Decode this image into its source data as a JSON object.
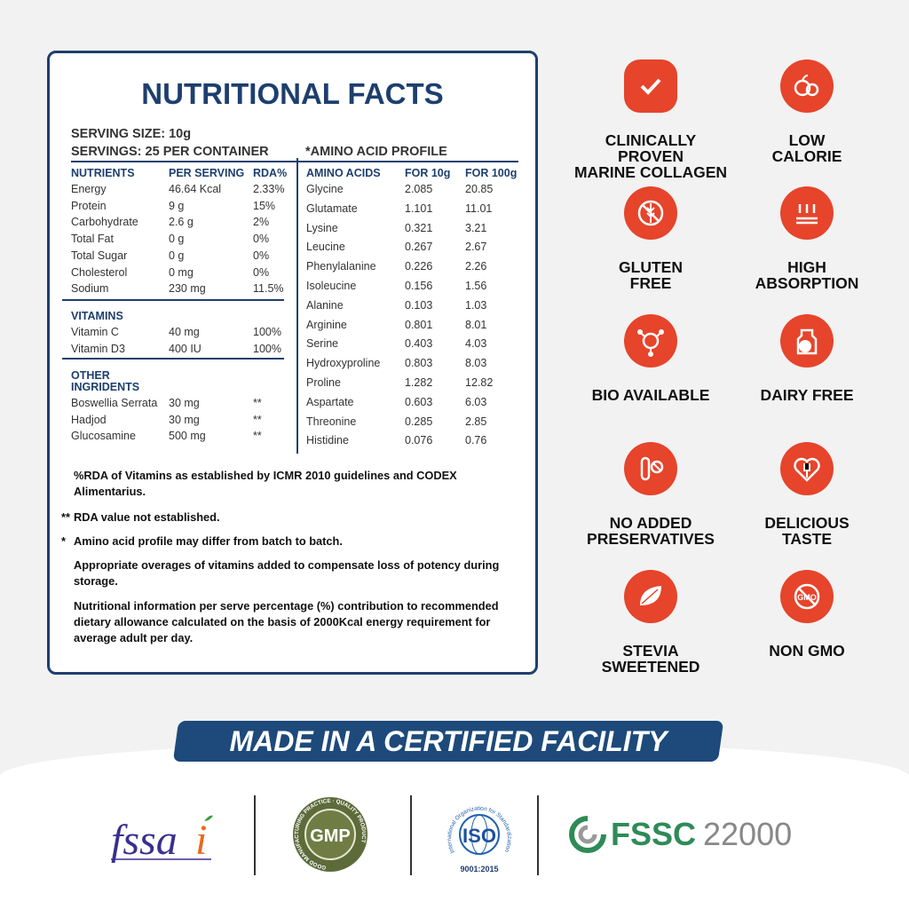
{
  "title": "NUTRITIONAL FACTS",
  "serving_size": "SERVING SIZE: 10g",
  "servings": "SERVINGS: 25 PER CONTAINER",
  "amino_title": "*AMINO ACID PROFILE",
  "nutrients": {
    "headers": [
      "NUTRIENTS",
      "PER SERVING",
      "RDA%"
    ],
    "rows": [
      [
        "Energy",
        "46.64 Kcal",
        "2.33%"
      ],
      [
        "Protein",
        "9 g",
        "15%"
      ],
      [
        "Carbohydrate",
        "2.6 g",
        "2%"
      ],
      [
        "Total Fat",
        "0 g",
        "0%"
      ],
      [
        "Total Sugar",
        "0 g",
        "0%"
      ],
      [
        "Cholesterol",
        "0 mg",
        "0%"
      ],
      [
        "Sodium",
        "230 mg",
        "11.5%"
      ]
    ]
  },
  "vitamins": {
    "header": "VITAMINS",
    "rows": [
      [
        "Vitamin C",
        "40 mg",
        "100%"
      ],
      [
        "Vitamin D3",
        "400 IU",
        "100%"
      ]
    ]
  },
  "other": {
    "header1": "OTHER",
    "header2": "INGRIDENTS",
    "rows": [
      [
        "Boswellia Serrata",
        "30 mg",
        "**"
      ],
      [
        "Hadjod",
        "30 mg",
        "**"
      ],
      [
        "Glucosamine",
        "500 mg",
        "**"
      ]
    ]
  },
  "amino": {
    "headers": [
      "AMINO ACIDS",
      "FOR 10g",
      "FOR 100g"
    ],
    "rows": [
      [
        "Glycine",
        "2.085",
        "20.85"
      ],
      [
        "Glutamate",
        "1.101",
        "11.01"
      ],
      [
        "Lysine",
        "0.321",
        "3.21"
      ],
      [
        "Leucine",
        "0.267",
        "2.67"
      ],
      [
        "Phenylalanine",
        "0.226",
        "2.26"
      ],
      [
        "Isoleucine",
        "0.156",
        "1.56"
      ],
      [
        "Alanine",
        "0.103",
        "1.03"
      ],
      [
        "Arginine",
        "0.801",
        "8.01"
      ],
      [
        "Serine",
        "0.403",
        "4.03"
      ],
      [
        "Hydroxyproline",
        "0.803",
        "8.03"
      ],
      [
        "Proline",
        "1.282",
        "12.82"
      ],
      [
        "Aspartate",
        "0.603",
        "6.03"
      ],
      [
        "Threonine",
        "0.285",
        "2.85"
      ],
      [
        "Histidine",
        "0.076",
        "0.76"
      ]
    ]
  },
  "notes": [
    {
      "star": "",
      "text": "%RDA of Vitamins as established by ICMR 2010 guidelines and CODEX Alimentarius."
    },
    {
      "star": "**",
      "text": "RDA value not established."
    },
    {
      "star": "*",
      "text": "Amino acid profile may differ from batch to batch."
    },
    {
      "star": "",
      "text": "Appropriate overages of vitamins added to compensate loss of potency during storage."
    },
    {
      "star": "",
      "text": "Nutritional information per serve percentage (%) contribution to recommended dietary allowance calculated on the basis of 2000Kcal energy requirement for average adult per day."
    }
  ],
  "features": [
    {
      "icon": "check-badge",
      "l1": "CLINICALLY PROVEN",
      "l2": "MARINE COLLAGEN"
    },
    {
      "icon": "apple",
      "l1": "LOW",
      "l2": "CALORIE"
    },
    {
      "icon": "gluten-free",
      "l1": "GLUTEN",
      "l2": "FREE"
    },
    {
      "icon": "absorption",
      "l1": "HIGH",
      "l2": "ABSORPTION"
    },
    {
      "icon": "molecule",
      "l1": "BIO AVAILABLE",
      "l2": ""
    },
    {
      "icon": "dairy-free",
      "l1": "DAIRY FREE",
      "l2": ""
    },
    {
      "icon": "test-tube-ban",
      "l1": "NO ADDED",
      "l2": "PRESERVATIVES"
    },
    {
      "icon": "heart-fork",
      "l1": "DELICIOUS",
      "l2": "TASTE"
    },
    {
      "icon": "stevia-leaf",
      "l1": "STEVIA",
      "l2": "SWEETENED"
    },
    {
      "icon": "no-gmo",
      "l1": "NON GMO",
      "l2": ""
    }
  ],
  "banner": "MADE IN A CERTIFIED FACILITY",
  "certs": {
    "fssai": "fssai",
    "gmp": "GMP",
    "gmp_ring": "GOOD MANUFACTURING PRACTICE · QUALITY PRODUCT",
    "iso": "ISO",
    "iso_ring": "International Organization for Standardization",
    "iso_num": "9001:2015",
    "fssc": "FSSC",
    "fssc_num": "22000"
  },
  "colors": {
    "blue": "#1d3f6e",
    "orange": "#e6442b"
  }
}
